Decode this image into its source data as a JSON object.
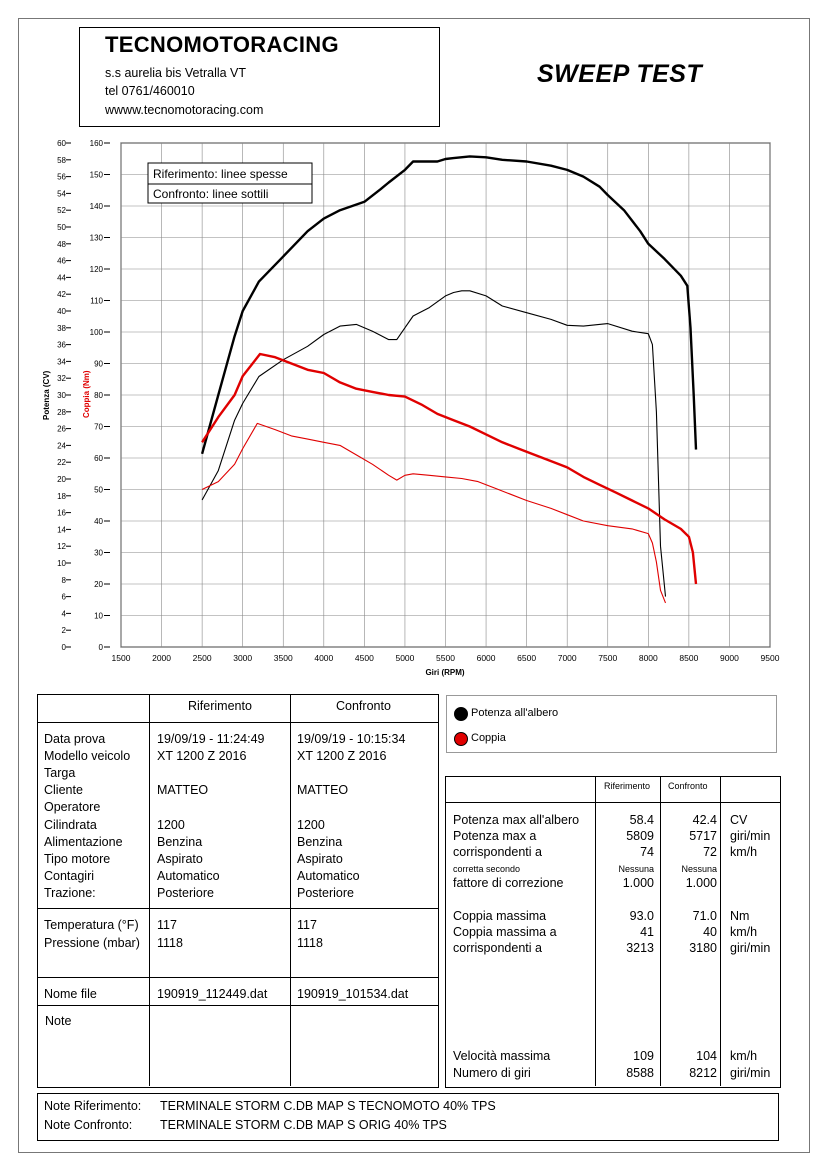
{
  "header": {
    "company": "TECNOMOTORACING",
    "address": "s.s aurelia bis  Vetralla  VT",
    "phone": "tel  0761/460010",
    "website": "wwww.tecnomotoracing.com",
    "title": "SWEEP TEST"
  },
  "chart_data": {
    "type": "line",
    "xlabel": "Giri (RPM)",
    "ylabel_left": "Potenza (CV)",
    "ylabel_right": "Coppia (Nm)",
    "x_ticks": [
      1500,
      2000,
      2500,
      3000,
      3500,
      4000,
      4500,
      5000,
      5500,
      6000,
      6500,
      7000,
      7500,
      8000,
      8500,
      9000,
      9500
    ],
    "xlim": [
      1500,
      9500
    ],
    "ylim_power": [
      0,
      60
    ],
    "ylim_torque": [
      0,
      160
    ],
    "power_ticks": [
      0,
      2,
      4,
      6,
      8,
      10,
      12,
      14,
      16,
      18,
      20,
      22,
      24,
      26,
      28,
      30,
      32,
      34,
      36,
      38,
      40,
      42,
      44,
      46,
      48,
      50,
      52,
      54,
      56,
      58,
      60
    ],
    "torque_ticks": [
      0,
      10,
      20,
      30,
      40,
      50,
      60,
      70,
      80,
      90,
      100,
      110,
      120,
      130,
      140,
      150,
      160
    ],
    "grid": true,
    "legend_in_chart": {
      "ref": "Riferimento: linee spesse",
      "cmp": "Confronto: linee sottili"
    },
    "series": [
      {
        "name": "Potenza all'albero",
        "run": "Riferimento",
        "axis": "power",
        "color": "#000000",
        "stroke": "thick",
        "x": [
          2500,
          2700,
          2900,
          3000,
          3200,
          3500,
          3800,
          4000,
          4200,
          4500,
          4700,
          4800,
          5000,
          5100,
          5200,
          5400,
          5500,
          5600,
          5800,
          6000,
          6200,
          6500,
          6800,
          7000,
          7200,
          7400,
          7500,
          7700,
          7900,
          8000,
          8200,
          8400,
          8480,
          8520,
          8560,
          8588
        ],
        "y": [
          23,
          30,
          37,
          40,
          43.5,
          46.5,
          49.5,
          51,
          52,
          53,
          54.5,
          55.3,
          56.8,
          57.8,
          57.8,
          57.8,
          58.1,
          58.2,
          58.4,
          58.3,
          58.0,
          57.8,
          57.3,
          56.8,
          56.0,
          54.8,
          53.8,
          52.0,
          49.5,
          48.0,
          46.2,
          44.2,
          43.0,
          38.0,
          30.0,
          23.5
        ]
      },
      {
        "name": "Potenza all'albero",
        "run": "Confronto",
        "axis": "power",
        "color": "#000000",
        "stroke": "thin",
        "x": [
          2500,
          2700,
          2900,
          3000,
          3200,
          3500,
          3800,
          4000,
          4200,
          4400,
          4600,
          4800,
          4900,
          5000,
          5100,
          5300,
          5500,
          5600,
          5700,
          5800,
          6000,
          6200,
          6500,
          6800,
          7000,
          7200,
          7500,
          7800,
          8000,
          8050,
          8100,
          8150,
          8212
        ],
        "y": [
          17.5,
          21,
          27,
          29,
          32.2,
          34.2,
          35.8,
          37.2,
          38.2,
          38.4,
          37.6,
          36.6,
          36.6,
          38.0,
          39.4,
          40.4,
          41.8,
          42.2,
          42.4,
          42.4,
          41.8,
          40.6,
          39.8,
          39.0,
          38.3,
          38.2,
          38.5,
          37.6,
          37.3,
          36.0,
          28.0,
          12.0,
          6.0
        ]
      },
      {
        "name": "Coppia",
        "run": "Riferimento",
        "axis": "torque",
        "color": "#e00000",
        "stroke": "thick",
        "x": [
          2500,
          2700,
          2900,
          3000,
          3213,
          3400,
          3600,
          3800,
          4000,
          4200,
          4400,
          4600,
          4800,
          5000,
          5200,
          5400,
          5600,
          5800,
          6000,
          6200,
          6400,
          6600,
          6800,
          7000,
          7200,
          7400,
          7600,
          7800,
          8000,
          8200,
          8400,
          8500,
          8550,
          8588
        ],
        "y": [
          65,
          73,
          80,
          86,
          93.0,
          92,
          90,
          88,
          87,
          84,
          82,
          81,
          80,
          79.5,
          77,
          74,
          72,
          70,
          67.5,
          65,
          63,
          61,
          59,
          57,
          54,
          51.5,
          49,
          46.5,
          44,
          40.5,
          37.5,
          35.0,
          30.0,
          20.0
        ]
      },
      {
        "name": "Coppia",
        "run": "Confronto",
        "axis": "torque",
        "color": "#e00000",
        "stroke": "thin",
        "x": [
          2500,
          2700,
          2900,
          3000,
          3180,
          3400,
          3600,
          3800,
          4000,
          4200,
          4400,
          4600,
          4800,
          4900,
          5000,
          5100,
          5300,
          5500,
          5700,
          5900,
          6100,
          6300,
          6500,
          6800,
          7000,
          7200,
          7500,
          7800,
          8000,
          8050,
          8100,
          8150,
          8212
        ],
        "y": [
          50,
          52.5,
          58,
          63,
          71.0,
          69,
          67,
          66,
          65,
          64,
          61,
          58,
          54.5,
          53,
          54.5,
          55,
          54.5,
          54.0,
          53.5,
          52.5,
          50.5,
          48.5,
          46.5,
          44,
          42,
          40,
          38.5,
          37.5,
          36.0,
          33.0,
          27.0,
          18.0,
          14.0
        ]
      }
    ]
  },
  "legend": {
    "power": "Potenza all'albero",
    "torque": "Coppia",
    "power_color": "#000000",
    "torque_color": "#e00000"
  },
  "info_table": {
    "col_ref": "Riferimento",
    "col_cmp": "Confronto",
    "block1_labels": [
      "Data prova",
      "Modello veicolo",
      "Targa",
      "Cliente",
      "Operatore",
      "Cilindrata",
      "Alimentazione",
      "Tipo motore",
      "Contagiri",
      "Trazione:"
    ],
    "block1_ref": [
      "19/09/19 - 11:24:49",
      "XT 1200 Z 2016",
      "",
      "MATTEO",
      "",
      "1200",
      "Benzina",
      "Aspirato",
      "Automatico",
      "Posteriore"
    ],
    "block1_cmp": [
      "19/09/19 - 10:15:34",
      "XT 1200 Z 2016",
      "",
      "MATTEO",
      "",
      "1200",
      "Benzina",
      "Aspirato",
      "Automatico",
      "Posteriore"
    ],
    "block2_labels": [
      "Temperatura (°F)",
      "Pressione (mbar)"
    ],
    "block2_ref": [
      "117",
      "1118"
    ],
    "block2_cmp": [
      "117",
      "1118"
    ],
    "file_label": "Nome file",
    "file_ref": "190919_112449.dat",
    "file_cmp": "190919_101534.dat",
    "note_label": "Note"
  },
  "results_table": {
    "col_ref": "Riferimento",
    "col_cmp": "Confronto",
    "rows": [
      {
        "label": "Potenza max all'albero",
        "ref": "58.4",
        "cmp": "42.4",
        "unit": "CV"
      },
      {
        "label": "Potenza max a",
        "ref": "5809",
        "cmp": "5717",
        "unit": "giri/min"
      },
      {
        "label": "corrispondenti a",
        "ref": "74",
        "cmp": "72",
        "unit": "km/h"
      },
      {
        "label": "corretta secondo",
        "ref": "Nessuna",
        "cmp": "Nessuna",
        "unit": "",
        "small": true
      },
      {
        "label": "fattore di correzione",
        "ref": "1.000",
        "cmp": "1.000",
        "unit": ""
      },
      {
        "label": "Coppia massima",
        "ref": "93.0",
        "cmp": "71.0",
        "unit": "Nm"
      },
      {
        "label": "Coppia massima a",
        "ref": "41",
        "cmp": "40",
        "unit": "km/h"
      },
      {
        "label": "corrispondenti a",
        "ref": "3213",
        "cmp": "3180",
        "unit": "giri/min"
      },
      {
        "label": "Velocità massima",
        "ref": "109",
        "cmp": "104",
        "unit": "km/h"
      },
      {
        "label": "Numero di giri",
        "ref": "8588",
        "cmp": "8212",
        "unit": "giri/min"
      }
    ]
  },
  "notes": {
    "ref_label": "Note Riferimento:",
    "ref_text": "TERMINALE STORM C.DB MAP S TECNOMOTO 40% TPS",
    "cmp_label": "Note Confronto:",
    "cmp_text": "TERMINALE STORM C.DB MAP S ORIG 40% TPS"
  }
}
